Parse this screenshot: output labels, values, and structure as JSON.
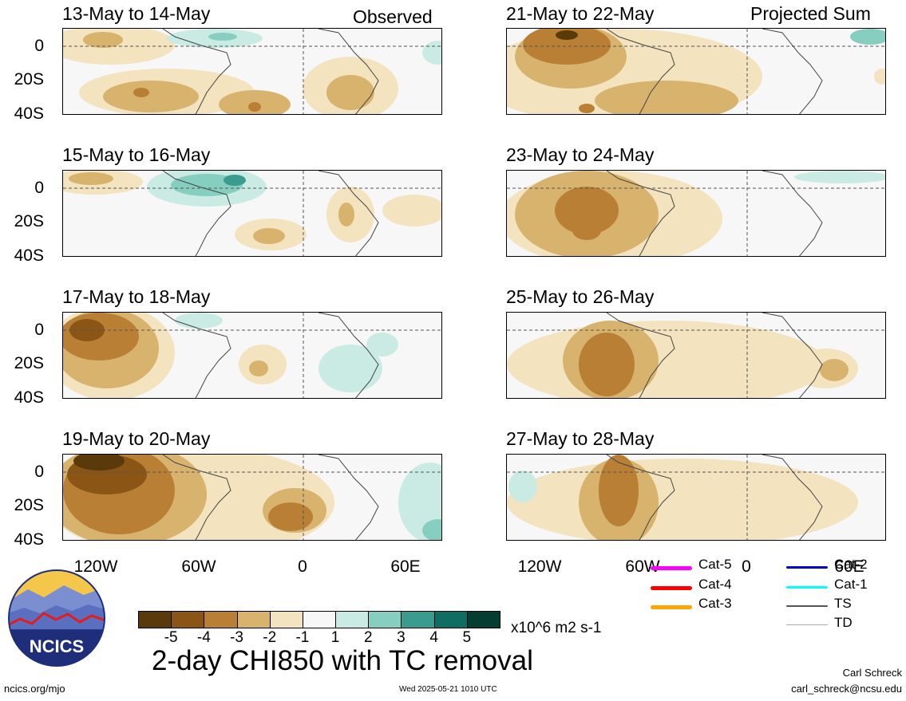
{
  "header": {
    "left_label": "Observed",
    "right_label": "Projected Sum"
  },
  "panels_left": [
    {
      "title": "13-May to 14-May"
    },
    {
      "title": "15-May to 16-May"
    },
    {
      "title": "17-May to 18-May"
    },
    {
      "title": "19-May to 20-May"
    }
  ],
  "panels_right": [
    {
      "title": "21-May to 22-May"
    },
    {
      "title": "23-May to 24-May"
    },
    {
      "title": "25-May to 26-May"
    },
    {
      "title": "27-May to 28-May"
    }
  ],
  "lat_labels": [
    "0",
    "20S",
    "40S"
  ],
  "lon_labels": [
    "120W",
    "60W",
    "0",
    "60E"
  ],
  "colorbar": {
    "colors": [
      "#5a3a0a",
      "#8b5516",
      "#b87f35",
      "#d8b36e",
      "#f3e3bf",
      "#f7f7f7",
      "#c9ebe4",
      "#86cfc0",
      "#3a9c8f",
      "#0e6e63",
      "#063d33"
    ],
    "labels": [
      "-5",
      "-4",
      "-3",
      "-2",
      "-1",
      "1",
      "2",
      "3",
      "4",
      "5"
    ],
    "units": "x10^6 m2 s-1"
  },
  "main_title": "2-day CHI850 with TC removal",
  "legend": [
    {
      "label": "Cat-5",
      "color": "#ff00ff"
    },
    {
      "label": "Cat-4",
      "color": "#ff0000"
    },
    {
      "label": "Cat-3",
      "color": "#ffa500"
    },
    {
      "label": "Cat-2",
      "color": "#0000cc"
    },
    {
      "label": "Cat-1",
      "color": "#00ffff"
    },
    {
      "label": "TS",
      "color": "#555555"
    },
    {
      "label": "TD",
      "color": "#aaaaaa"
    }
  ],
  "logo": {
    "text": "NCICS"
  },
  "footer": {
    "url": "ncics.org/mjo",
    "timestamp": "Wed 2025-05-21 1010 UTC",
    "author": "Carl Schreck",
    "email": "carl_schreck@ncsu.edu"
  }
}
